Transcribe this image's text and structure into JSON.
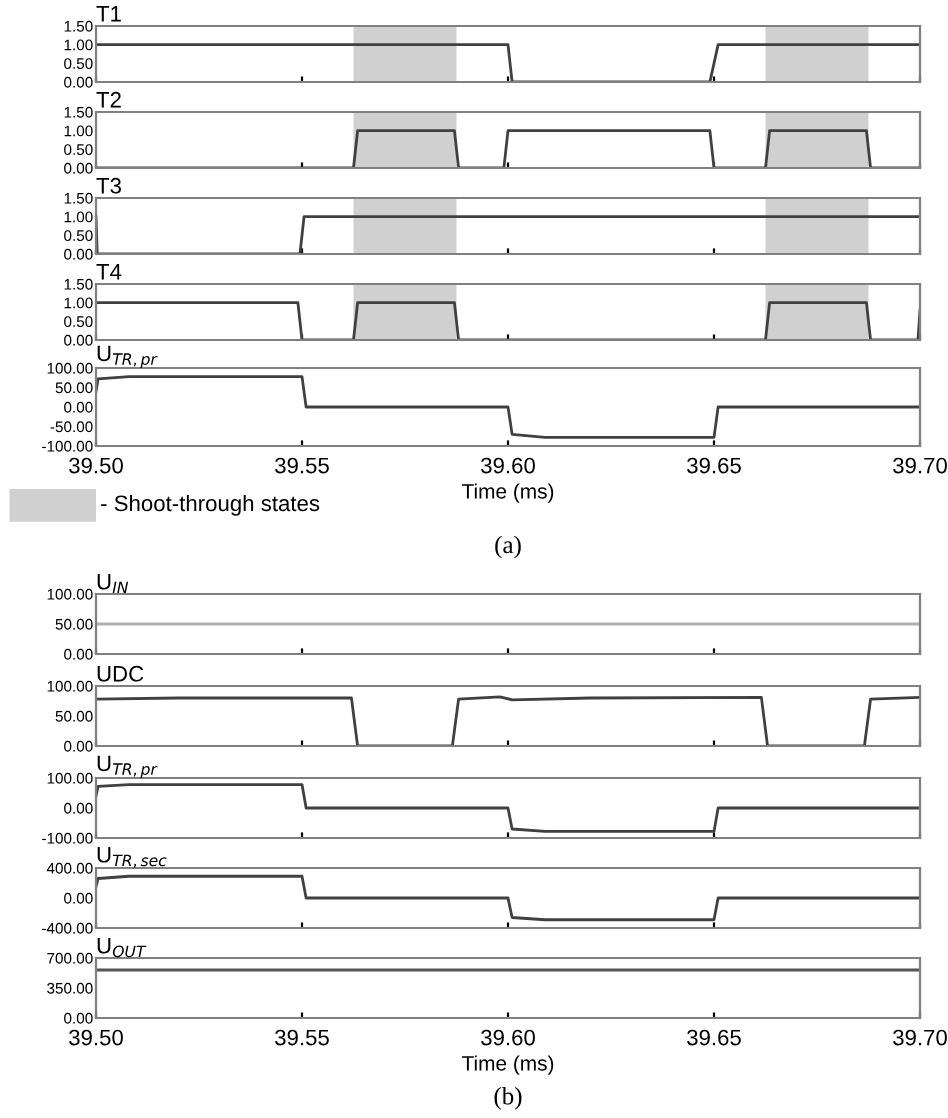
{
  "chart_data": [
    {
      "type": "line",
      "title": "T1",
      "x": [
        39.5,
        39.6,
        39.601,
        39.649,
        39.651,
        39.7
      ],
      "series": [
        {
          "color": "#404040",
          "values": [
            1,
            1,
            0,
            0,
            1,
            1
          ]
        }
      ],
      "xlim": [
        39.5,
        39.7
      ],
      "xticks": [
        {
          "value": 39.5,
          "label": null
        },
        {
          "value": 39.55,
          "label": null
        },
        {
          "value": 39.6,
          "label": null
        },
        {
          "value": 39.65,
          "label": null
        },
        {
          "value": 39.7,
          "label": null
        }
      ],
      "ylim": [
        0,
        1.5
      ],
      "yticks": [
        {
          "value": 0,
          "label": "0.00"
        },
        {
          "value": 0.5,
          "label": "0.50"
        },
        {
          "value": 1,
          "label": "1.00"
        },
        {
          "value": 1.5,
          "label": "1.50"
        }
      ],
      "tick_labels": "y",
      "grid": false,
      "bands": [
        {
          "axis": "x",
          "from": 39.5625,
          "to": 39.5875,
          "color": "#d0d0d0"
        },
        {
          "axis": "x",
          "from": 39.6625,
          "to": 39.6875,
          "color": "#d0d0d0"
        }
      ]
    },
    {
      "type": "line",
      "title": "T2",
      "x": [
        39.5,
        39.5625,
        39.5635,
        39.587,
        39.588,
        39.599,
        39.6,
        39.649,
        39.65,
        39.6625,
        39.6635,
        39.687,
        39.688,
        39.7
      ],
      "series": [
        {
          "color": "#404040",
          "values": [
            0,
            0,
            1,
            1,
            0,
            0,
            1,
            1,
            0,
            0,
            1,
            1,
            0,
            0
          ]
        }
      ],
      "xlim": [
        39.5,
        39.7
      ],
      "xticks": [
        {
          "value": 39.5,
          "label": null
        },
        {
          "value": 39.55,
          "label": null
        },
        {
          "value": 39.6,
          "label": null
        },
        {
          "value": 39.65,
          "label": null
        },
        {
          "value": 39.7,
          "label": null
        }
      ],
      "ylim": [
        0,
        1.5
      ],
      "yticks": [
        {
          "value": 0,
          "label": "0.00"
        },
        {
          "value": 0.5,
          "label": "0.50"
        },
        {
          "value": 1,
          "label": "1.00"
        },
        {
          "value": 1.5,
          "label": "1.50"
        }
      ],
      "tick_labels": "y",
      "grid": false,
      "bands": [
        {
          "axis": "x",
          "from": 39.5625,
          "to": 39.5875,
          "color": "#d0d0d0"
        },
        {
          "axis": "x",
          "from": 39.6625,
          "to": 39.6875,
          "color": "#d0d0d0"
        }
      ]
    },
    {
      "type": "line",
      "title": "T3",
      "x": [
        39.5,
        39.5003,
        39.5495,
        39.5505,
        39.7
      ],
      "series": [
        {
          "color": "#404040",
          "values": [
            1,
            0,
            0,
            1,
            1
          ]
        }
      ],
      "xlim": [
        39.5,
        39.7
      ],
      "xticks": [
        {
          "value": 39.5,
          "label": null
        },
        {
          "value": 39.55,
          "label": null
        },
        {
          "value": 39.6,
          "label": null
        },
        {
          "value": 39.65,
          "label": null
        },
        {
          "value": 39.7,
          "label": null
        }
      ],
      "ylim": [
        0,
        1.5
      ],
      "yticks": [
        {
          "value": 0,
          "label": "0.00"
        },
        {
          "value": 0.5,
          "label": "0.50"
        },
        {
          "value": 1,
          "label": "1.00"
        },
        {
          "value": 1.5,
          "label": "1.50"
        }
      ],
      "tick_labels": "y",
      "grid": false,
      "bands": [
        {
          "axis": "x",
          "from": 39.5625,
          "to": 39.5875,
          "color": "#d0d0d0"
        },
        {
          "axis": "x",
          "from": 39.6625,
          "to": 39.6875,
          "color": "#d0d0d0"
        }
      ]
    },
    {
      "type": "line",
      "title": "T4",
      "x": [
        39.5,
        39.549,
        39.55,
        39.5625,
        39.5635,
        39.587,
        39.588,
        39.6625,
        39.6635,
        39.687,
        39.688,
        39.6995,
        39.7
      ],
      "series": [
        {
          "color": "#404040",
          "values": [
            1,
            1,
            0,
            0,
            1,
            1,
            0,
            0,
            1,
            1,
            0,
            0,
            0.8
          ]
        }
      ],
      "xlim": [
        39.5,
        39.7
      ],
      "xticks": [
        {
          "value": 39.5,
          "label": null
        },
        {
          "value": 39.55,
          "label": null
        },
        {
          "value": 39.6,
          "label": null
        },
        {
          "value": 39.65,
          "label": null
        },
        {
          "value": 39.7,
          "label": null
        }
      ],
      "ylim": [
        0,
        1.5
      ],
      "yticks": [
        {
          "value": 0,
          "label": "0.00"
        },
        {
          "value": 0.5,
          "label": "0.50"
        },
        {
          "value": 1,
          "label": "1.00"
        },
        {
          "value": 1.5,
          "label": "1.50"
        }
      ],
      "tick_labels": "y",
      "grid": false,
      "bands": [
        {
          "axis": "x",
          "from": 39.5625,
          "to": 39.5875,
          "color": "#d0d0d0"
        },
        {
          "axis": "x",
          "from": 39.6625,
          "to": 39.6875,
          "color": "#d0d0d0"
        }
      ]
    },
    {
      "type": "line",
      "title": "U$_{TR,pr}$",
      "xlabel": "Time (ms)",
      "x": [
        39.5,
        39.5005,
        39.508,
        39.55,
        39.551,
        39.6,
        39.601,
        39.609,
        39.65,
        39.651,
        39.7
      ],
      "series": [
        {
          "color": "#404040",
          "values": [
            40,
            72,
            78,
            78,
            0,
            0,
            -70,
            -78,
            -78,
            0,
            0
          ]
        }
      ],
      "xlim": [
        39.5,
        39.7
      ],
      "xticks": [
        {
          "value": 39.5,
          "label": "39.50"
        },
        {
          "value": 39.55,
          "label": "39.55"
        },
        {
          "value": 39.6,
          "label": "39.60"
        },
        {
          "value": 39.65,
          "label": "39.65"
        },
        {
          "value": 39.7,
          "label": "39.70"
        }
      ],
      "ylim": [
        -100,
        100
      ],
      "yticks": [
        {
          "value": -100,
          "label": "-100.00"
        },
        {
          "value": -50,
          "label": "-50.00"
        },
        {
          "value": 0,
          "label": "0.00"
        },
        {
          "value": 50,
          "label": "50.00"
        },
        {
          "value": 100,
          "label": "100.00"
        }
      ],
      "grid": false,
      "annotations": [
        "- Shoot-through states",
        "(a)"
      ]
    },
    {
      "type": "line",
      "title": "U$_{IN}$",
      "x": [
        39.5,
        39.7
      ],
      "series": [
        {
          "color": "#b0b0b0",
          "values": [
            50,
            50
          ]
        }
      ],
      "xlim": [
        39.5,
        39.7
      ],
      "xticks": [
        {
          "value": 39.5,
          "label": null
        },
        {
          "value": 39.55,
          "label": null
        },
        {
          "value": 39.6,
          "label": null
        },
        {
          "value": 39.65,
          "label": null
        },
        {
          "value": 39.7,
          "label": null
        }
      ],
      "ylim": [
        0,
        100
      ],
      "yticks": [
        {
          "value": 0,
          "label": "0.00"
        },
        {
          "value": 50,
          "label": "50.00"
        },
        {
          "value": 100,
          "label": "100.00"
        }
      ],
      "tick_labels": "y",
      "grid": false
    },
    {
      "type": "line",
      "title": "UDC",
      "x": [
        39.5,
        39.52,
        39.562,
        39.5635,
        39.5865,
        39.588,
        39.598,
        39.601,
        39.62,
        39.6615,
        39.663,
        39.6865,
        39.688,
        39.7
      ],
      "series": [
        {
          "color": "#404040",
          "values": [
            78,
            80,
            80,
            0,
            0,
            78,
            82,
            77,
            80,
            81,
            0,
            0,
            78,
            81
          ]
        }
      ],
      "xlim": [
        39.5,
        39.7
      ],
      "xticks": [
        {
          "value": 39.5,
          "label": null
        },
        {
          "value": 39.55,
          "label": null
        },
        {
          "value": 39.6,
          "label": null
        },
        {
          "value": 39.65,
          "label": null
        },
        {
          "value": 39.7,
          "label": null
        }
      ],
      "ylim": [
        0,
        100
      ],
      "yticks": [
        {
          "value": 0,
          "label": "0.00"
        },
        {
          "value": 50,
          "label": "50.00"
        },
        {
          "value": 100,
          "label": "100.00"
        }
      ],
      "tick_labels": "y",
      "grid": false
    },
    {
      "type": "line",
      "title": "U$_{TR,pr}$",
      "x": [
        39.5,
        39.5005,
        39.508,
        39.55,
        39.551,
        39.6,
        39.601,
        39.609,
        39.65,
        39.651,
        39.7
      ],
      "series": [
        {
          "color": "#404040",
          "values": [
            40,
            72,
            78,
            78,
            0,
            0,
            -70,
            -78,
            -78,
            0,
            0
          ]
        }
      ],
      "xlim": [
        39.5,
        39.7
      ],
      "xticks": [
        {
          "value": 39.5,
          "label": null
        },
        {
          "value": 39.55,
          "label": null
        },
        {
          "value": 39.6,
          "label": null
        },
        {
          "value": 39.65,
          "label": null
        },
        {
          "value": 39.7,
          "label": null
        }
      ],
      "ylim": [
        -100,
        100
      ],
      "yticks": [
        {
          "value": -100,
          "label": "-100.00"
        },
        {
          "value": 0,
          "label": "0.00"
        },
        {
          "value": 100,
          "label": "100.00"
        }
      ],
      "tick_labels": "y",
      "grid": false
    },
    {
      "type": "line",
      "title": "U$_{TR,sec}$",
      "x": [
        39.5,
        39.5005,
        39.508,
        39.55,
        39.551,
        39.6,
        39.601,
        39.609,
        39.65,
        39.651,
        39.7
      ],
      "series": [
        {
          "color": "#404040",
          "values": [
            150,
            260,
            290,
            290,
            0,
            0,
            -260,
            -290,
            -290,
            0,
            0
          ]
        }
      ],
      "xlim": [
        39.5,
        39.7
      ],
      "xticks": [
        {
          "value": 39.5,
          "label": null
        },
        {
          "value": 39.55,
          "label": null
        },
        {
          "value": 39.6,
          "label": null
        },
        {
          "value": 39.65,
          "label": null
        },
        {
          "value": 39.7,
          "label": null
        }
      ],
      "ylim": [
        -400,
        400
      ],
      "yticks": [
        {
          "value": -400,
          "label": "-400.00"
        },
        {
          "value": 0,
          "label": "0.00"
        },
        {
          "value": 400,
          "label": "400.00"
        }
      ],
      "tick_labels": "y",
      "grid": false
    },
    {
      "type": "line",
      "title": "U$_{OUT}$",
      "xlabel": "Time (ms)",
      "x": [
        39.5,
        39.7
      ],
      "series": [
        {
          "color": "#555555",
          "values": [
            560,
            560
          ]
        }
      ],
      "xlim": [
        39.5,
        39.7
      ],
      "xticks": [
        {
          "value": 39.5,
          "label": "39.50"
        },
        {
          "value": 39.55,
          "label": "39.55"
        },
        {
          "value": 39.6,
          "label": "39.60"
        },
        {
          "value": 39.65,
          "label": "39.65"
        },
        {
          "value": 39.7,
          "label": "39.70"
        }
      ],
      "ylim": [
        0,
        700
      ],
      "yticks": [
        {
          "value": 0,
          "label": "0.00"
        },
        {
          "value": 350,
          "label": "350.00"
        },
        {
          "value": 700,
          "label": "700.00"
        }
      ],
      "grid": false,
      "annotations": [
        "(b)"
      ]
    }
  ]
}
